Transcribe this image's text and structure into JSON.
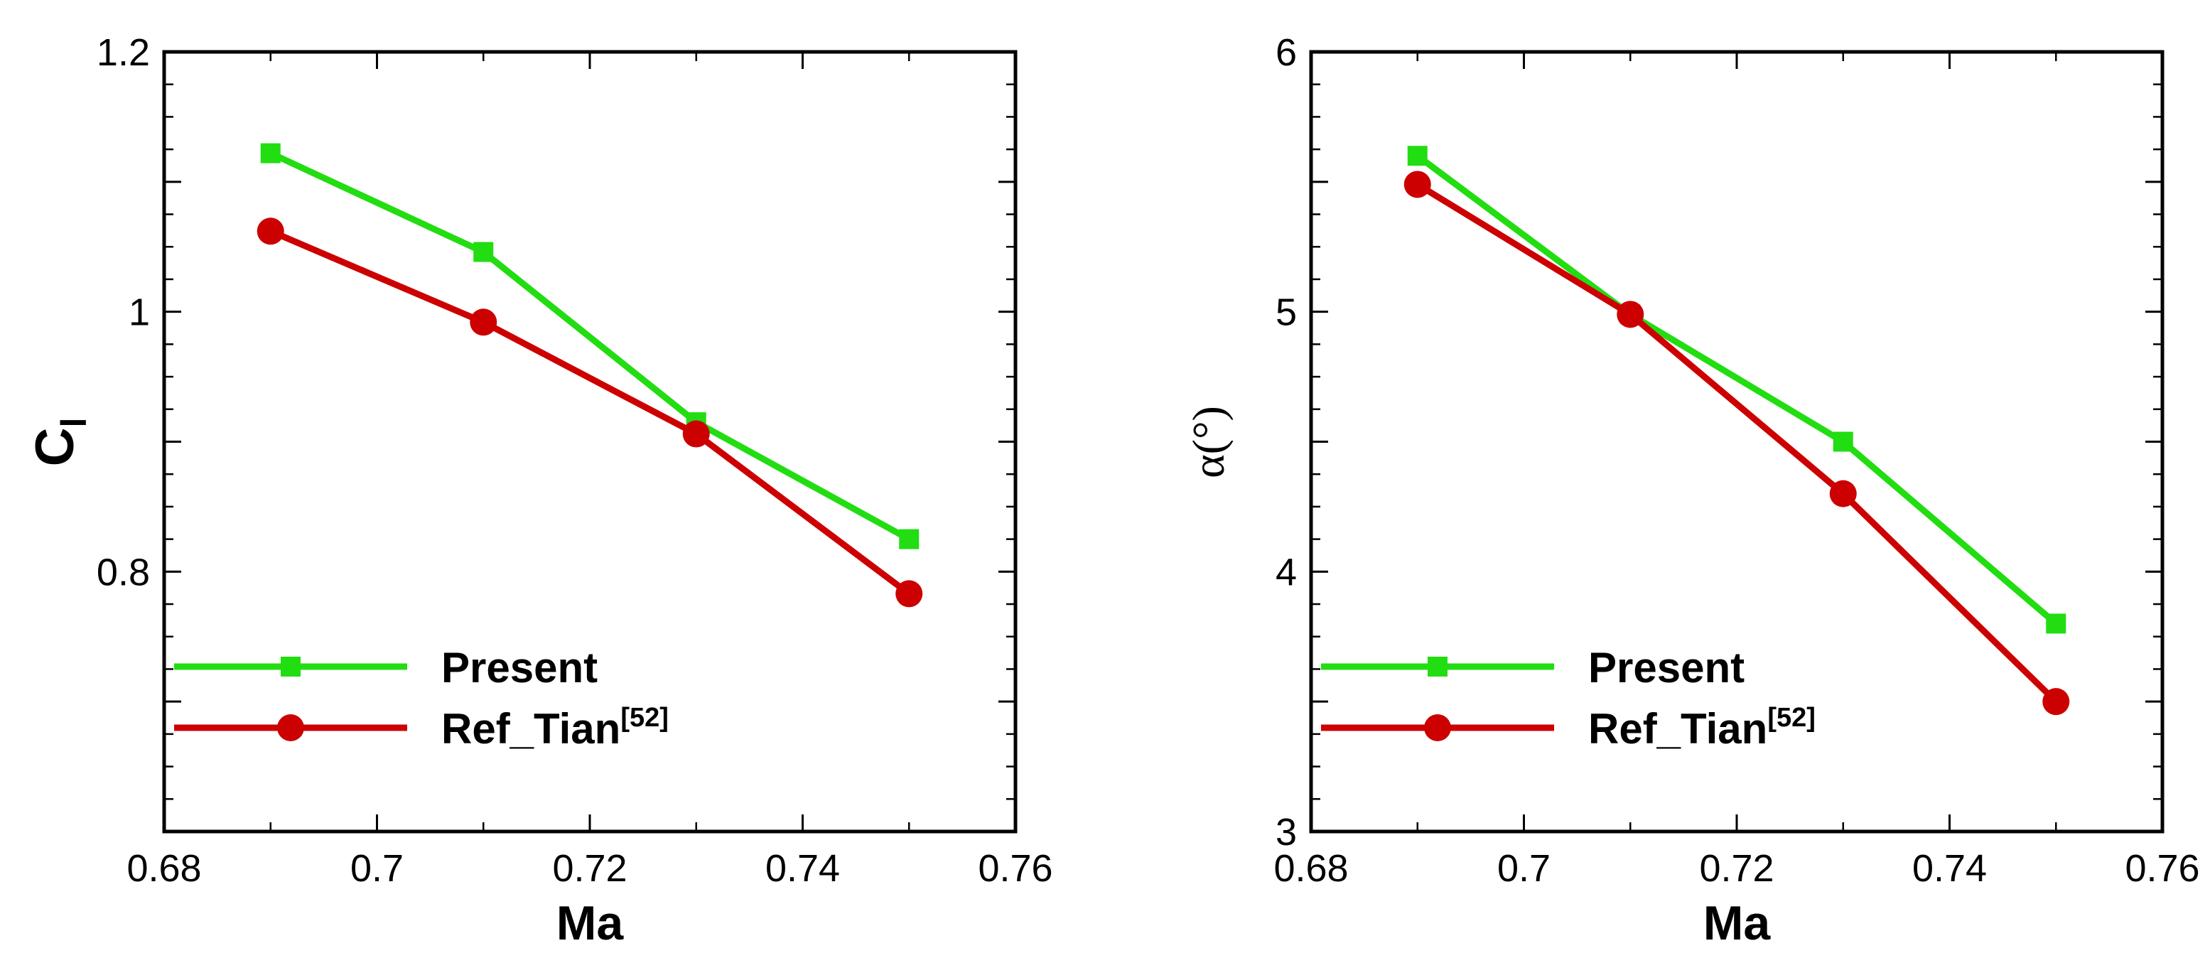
{
  "colors": {
    "present": "#22dd11",
    "reference": "#cc0000",
    "axis": "#000000"
  },
  "chart_data": [
    {
      "type": "line",
      "id": "cl",
      "xlabel": "Ma",
      "ylabel_main": "C",
      "ylabel_sub": "l",
      "xlim": [
        0.68,
        0.76
      ],
      "ylim": [
        0.6,
        1.2
      ],
      "xticks": [
        0.68,
        0.7,
        0.72,
        0.74,
        0.76
      ],
      "xtick_labels": [
        "0.68",
        "0.7",
        "0.72",
        "0.74",
        "0.76"
      ],
      "yticks": [
        0.8,
        1.0,
        1.2
      ],
      "ytick_labels": [
        "0.8",
        "1",
        "1.2"
      ],
      "ymajor_ticks": [
        0.7,
        0.8,
        0.9,
        1.0,
        1.1,
        1.2
      ],
      "series": [
        {
          "name": "Present",
          "legend_main": "Present",
          "legend_sup": "",
          "marker": "square",
          "color_key": "present",
          "x": [
            0.69,
            0.71,
            0.73,
            0.75
          ],
          "y": [
            1.122,
            1.046,
            0.915,
            0.825
          ]
        },
        {
          "name": "Ref_Tian[52]",
          "legend_main": "Ref_Tian",
          "legend_sup": "[52]",
          "marker": "circle",
          "color_key": "reference",
          "x": [
            0.69,
            0.71,
            0.73,
            0.75
          ],
          "y": [
            1.062,
            0.992,
            0.906,
            0.783
          ]
        }
      ],
      "legend_position": "lower-left"
    },
    {
      "type": "line",
      "id": "alpha",
      "xlabel": "Ma",
      "ylabel_main": "α(°)",
      "ylabel_sub": "",
      "xlim": [
        0.68,
        0.76
      ],
      "ylim": [
        3,
        6
      ],
      "xticks": [
        0.68,
        0.7,
        0.72,
        0.74,
        0.76
      ],
      "xtick_labels": [
        "0.68",
        "0.7",
        "0.72",
        "0.74",
        "0.76"
      ],
      "yticks": [
        3,
        4,
        5,
        6
      ],
      "ytick_labels": [
        "3",
        "4",
        "5",
        "6"
      ],
      "ymajor_ticks": [
        3,
        3.5,
        4,
        4.5,
        5,
        5.5,
        6
      ],
      "series": [
        {
          "name": "Present",
          "legend_main": "Present",
          "legend_sup": "",
          "marker": "square",
          "color_key": "present",
          "x": [
            0.69,
            0.71,
            0.73,
            0.75
          ],
          "y": [
            5.6,
            4.99,
            4.5,
            3.8
          ]
        },
        {
          "name": "Ref_Tian[52]",
          "legend_main": "Ref_Tian",
          "legend_sup": "[52]",
          "marker": "circle",
          "color_key": "reference",
          "x": [
            0.69,
            0.71,
            0.73,
            0.75
          ],
          "y": [
            5.49,
            4.99,
            4.3,
            3.5
          ]
        }
      ],
      "legend_position": "lower-left"
    }
  ]
}
